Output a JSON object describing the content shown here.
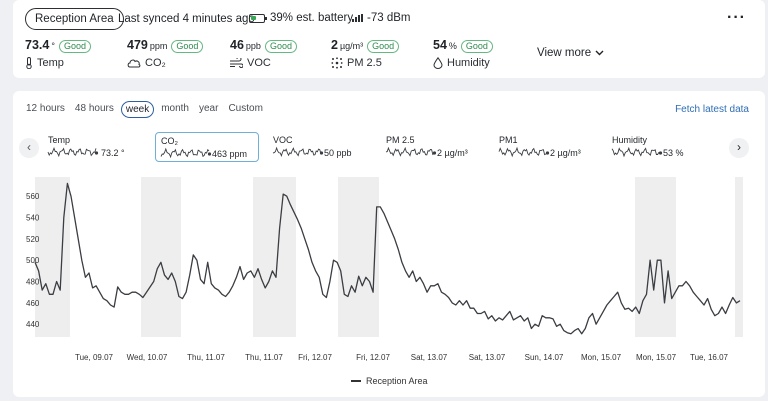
{
  "header": {
    "location": "Reception Area",
    "sync_status": "Last synced 4 minutes ago",
    "battery_text": "39% est. battery",
    "battery_level": 0.39,
    "signal_text": "-73 dBm",
    "menu_icon": "kebab-menu-icon"
  },
  "metrics": [
    {
      "value": "73.4",
      "unit": "°",
      "status": "Good",
      "label": "Temp",
      "icon": "thermometer-icon"
    },
    {
      "value": "479",
      "unit": "ppm",
      "status": "Good",
      "label": "CO₂",
      "icon": "cloud-icon"
    },
    {
      "value": "46",
      "unit": "ppb",
      "status": "Good",
      "label": "VOC",
      "icon": "wind-icon"
    },
    {
      "value": "2",
      "unit": "µg/m³",
      "status": "Good",
      "label": "PM 2.5",
      "icon": "particles-icon"
    },
    {
      "value": "54",
      "unit": "%",
      "status": "Good",
      "label": "Humidity",
      "icon": "droplet-icon"
    }
  ],
  "view_more": "View more",
  "range_tabs": [
    "12 hours",
    "48 hours",
    "week",
    "month",
    "year",
    "Custom"
  ],
  "active_range": "week",
  "fetch_label": "Fetch latest data",
  "sensors": [
    {
      "name": "Temp",
      "value": "73.2 °",
      "active": false
    },
    {
      "name": "CO₂",
      "value": "463 ppm",
      "active": true
    },
    {
      "name": "VOC",
      "value": "50 ppb",
      "active": false
    },
    {
      "name": "PM 2.5",
      "value": "2 µg/m³",
      "active": false
    },
    {
      "name": "PM1",
      "value": "2 µg/m³",
      "active": false
    },
    {
      "name": "Humidity",
      "value": "53 %",
      "active": false
    }
  ],
  "chart_data": {
    "type": "line",
    "series": [
      {
        "name": "Reception Area",
        "values": [
          498,
          490,
          472,
          478,
          468,
          468,
          480,
          472,
          540,
          572,
          560,
          540,
          520,
          500,
          484,
          488,
          474,
          476,
          470,
          464,
          462,
          458,
          456,
          475,
          470,
          468,
          468,
          470,
          470,
          468,
          465,
          470,
          475,
          480,
          492,
          498,
          486,
          482,
          488,
          480,
          466,
          464,
          470,
          486,
          505,
          500,
          482,
          478,
          498,
          478,
          474,
          472,
          468,
          466,
          470,
          476,
          484,
          494,
          482,
          488,
          490,
          484,
          492,
          482,
          474,
          480,
          490,
          484,
          530,
          562,
          560,
          552,
          545,
          538,
          530,
          520,
          510,
          498,
          490,
          484,
          468,
          465,
          480,
          500,
          498,
          490,
          468,
          466,
          476,
          470,
          485,
          476,
          484,
          480,
          470,
          550,
          550,
          544,
          536,
          528,
          520,
          510,
          498,
          490,
          484,
          490,
          480,
          484,
          478,
          470,
          476,
          476,
          478,
          470,
          468,
          465,
          460,
          458,
          462,
          458,
          462,
          455,
          455,
          450,
          450,
          452,
          445,
          448,
          443,
          446,
          444,
          448,
          452,
          444,
          446,
          448,
          443,
          446,
          436,
          440,
          438,
          448,
          446,
          446,
          445,
          438,
          440,
          434,
          432,
          431,
          434,
          436,
          431,
          436,
          446,
          450,
          440,
          446,
          452,
          458,
          462,
          466,
          470,
          460,
          454,
          455,
          452,
          456,
          450,
          462,
          468,
          500,
          472,
          500,
          500,
          460,
          490,
          464,
          470,
          476,
          476,
          480,
          476,
          470,
          466,
          462,
          458,
          464,
          454,
          448,
          450,
          456,
          450,
          458,
          465,
          460,
          462
        ]
      }
    ],
    "yticks": [
      560,
      540,
      520,
      500,
      480,
      460,
      440
    ],
    "ylim": [
      428,
      578
    ],
    "xticks": [
      "Tue, 09.07",
      "Wed, 10.07",
      "Thu, 11.07",
      "Thu, 11.07",
      "Fri, 12.07",
      "Fri, 12.07",
      "Sat, 13.07",
      "Sat, 13.07",
      "Sun, 14.07",
      "Mon, 15.07",
      "Mon, 15.07",
      "Tue, 16.07"
    ],
    "legend": "Reception Area",
    "legend_position": "bottom",
    "line_color": "#3a3d42",
    "shade_color": "#eeeeee"
  }
}
